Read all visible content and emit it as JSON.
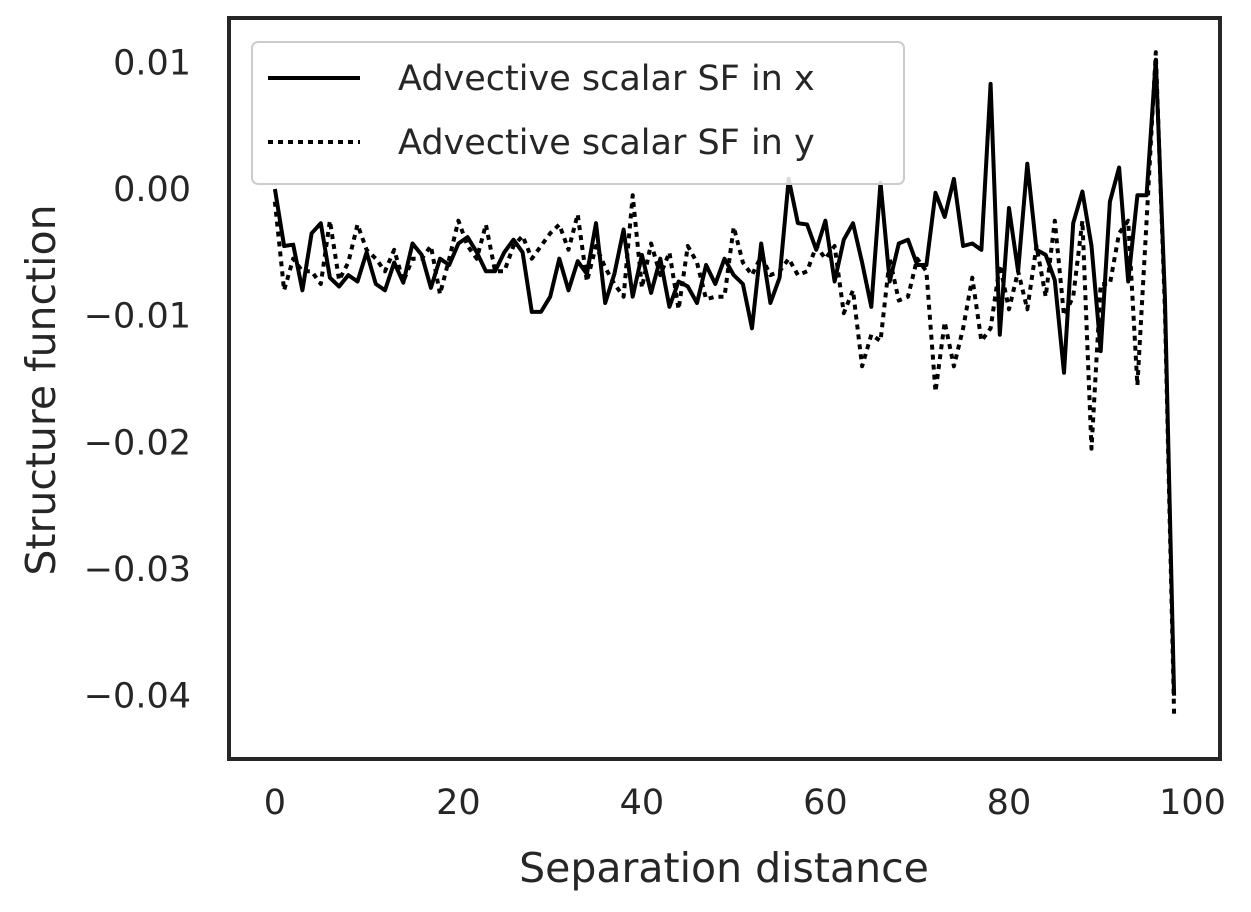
{
  "chart_data": {
    "type": "line",
    "title": "",
    "xlabel": "Separation distance",
    "ylabel": "Structure function",
    "xlim": [
      -5,
      103
    ],
    "ylim": [
      -0.045,
      0.0135
    ],
    "xticks": [
      0,
      20,
      40,
      60,
      80,
      100
    ],
    "xtick_labels": [
      "0",
      "20",
      "40",
      "60",
      "80",
      "100"
    ],
    "yticks": [
      0.01,
      0.0,
      -0.01,
      -0.02,
      -0.03,
      -0.04
    ],
    "ytick_labels": [
      "0.01",
      "0.00",
      "−0.01",
      "−0.02",
      "−0.03",
      "−0.04"
    ],
    "grid": false,
    "legend_position": "top-left",
    "x": [
      0,
      1,
      2,
      3,
      4,
      5,
      6,
      7,
      8,
      9,
      10,
      11,
      12,
      13,
      14,
      15,
      16,
      17,
      18,
      19,
      20,
      21,
      22,
      23,
      24,
      25,
      26,
      27,
      28,
      29,
      30,
      31,
      32,
      33,
      34,
      35,
      36,
      37,
      38,
      39,
      40,
      41,
      42,
      43,
      44,
      45,
      46,
      47,
      48,
      49,
      50,
      51,
      52,
      53,
      54,
      55,
      56,
      57,
      58,
      59,
      60,
      61,
      62,
      63,
      64,
      65,
      66,
      67,
      68,
      69,
      70,
      71,
      72,
      73,
      74,
      75,
      76,
      77,
      78,
      79,
      80,
      81,
      82,
      83,
      84,
      85,
      86,
      87,
      88,
      89,
      90,
      91,
      92,
      93,
      94,
      95,
      96,
      97,
      98
    ],
    "series": [
      {
        "name": "Advective scalar SF in x",
        "style": "solid",
        "color": "#000000",
        "values": [
          0.0,
          -0.0045,
          -0.0044,
          -0.008,
          -0.0035,
          -0.0027,
          -0.007,
          -0.0077,
          -0.0068,
          -0.0073,
          -0.005,
          -0.0075,
          -0.008,
          -0.0058,
          -0.0074,
          -0.0043,
          -0.0052,
          -0.0078,
          -0.0055,
          -0.006,
          -0.0043,
          -0.0038,
          -0.005,
          -0.0065,
          -0.0065,
          -0.005,
          -0.004,
          -0.005,
          -0.0097,
          -0.0097,
          -0.0085,
          -0.0055,
          -0.008,
          -0.0057,
          -0.0067,
          -0.0027,
          -0.009,
          -0.0067,
          -0.0032,
          -0.0085,
          -0.0052,
          -0.0082,
          -0.0055,
          -0.0093,
          -0.0073,
          -0.0077,
          -0.009,
          -0.006,
          -0.0075,
          -0.0055,
          -0.0068,
          -0.0075,
          -0.011,
          -0.0043,
          -0.009,
          -0.007,
          0.0008,
          -0.0027,
          -0.0028,
          -0.0048,
          -0.0025,
          -0.0073,
          -0.004,
          -0.0027,
          -0.0058,
          -0.0093,
          0.0005,
          -0.0073,
          -0.0043,
          -0.004,
          -0.006,
          -0.006,
          -0.0003,
          -0.0022,
          0.0008,
          -0.0045,
          -0.0043,
          -0.0048,
          0.0083,
          -0.0115,
          -0.0015,
          -0.0065,
          0.002,
          -0.0048,
          -0.0052,
          -0.0072,
          -0.0145,
          -0.0027,
          -0.0002,
          -0.0045,
          -0.0128,
          -0.001,
          0.0017,
          -0.0073,
          -0.0005,
          -0.0005,
          0.0102,
          -0.0085,
          -0.04
        ]
      },
      {
        "name": "Advective scalar SF in y",
        "style": "dotted",
        "color": "#000000",
        "values": [
          -0.001,
          -0.008,
          -0.0055,
          -0.0065,
          -0.0065,
          -0.0075,
          -0.0025,
          -0.0072,
          -0.0058,
          -0.0028,
          -0.0048,
          -0.0055,
          -0.0065,
          -0.0048,
          -0.0073,
          -0.0055,
          -0.0055,
          -0.0045,
          -0.0083,
          -0.0055,
          -0.0025,
          -0.0045,
          -0.0055,
          -0.0028,
          -0.0065,
          -0.0065,
          -0.0045,
          -0.0037,
          -0.0055,
          -0.0045,
          -0.0035,
          -0.0028,
          -0.0048,
          -0.002,
          -0.0073,
          -0.0045,
          -0.0062,
          -0.0075,
          -0.0085,
          -0.0005,
          -0.0078,
          -0.0043,
          -0.0068,
          -0.005,
          -0.0095,
          -0.0045,
          -0.0058,
          -0.0087,
          -0.0085,
          -0.0085,
          -0.003,
          -0.0058,
          -0.0068,
          -0.0053,
          -0.0068,
          -0.0065,
          -0.0055,
          -0.0068,
          -0.0065,
          -0.0045,
          -0.0055,
          -0.0045,
          -0.0098,
          -0.008,
          -0.014,
          -0.0115,
          -0.012,
          -0.0055,
          -0.0088,
          -0.0085,
          -0.0055,
          -0.0065,
          -0.016,
          -0.0105,
          -0.014,
          -0.011,
          -0.007,
          -0.012,
          -0.011,
          -0.006,
          -0.0095,
          -0.0065,
          -0.0095,
          -0.0045,
          -0.0085,
          -0.0025,
          -0.01,
          -0.0085,
          -0.0025,
          -0.0205,
          -0.0075,
          -0.0075,
          -0.0035,
          -0.0025,
          -0.0155,
          -0.0025,
          0.0108,
          -0.0095,
          -0.0415
        ]
      }
    ]
  }
}
